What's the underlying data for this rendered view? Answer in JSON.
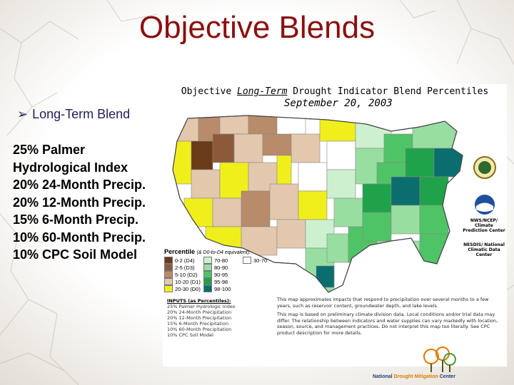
{
  "slide": {
    "title": "Objective Blends",
    "bullet": "Long-Term Blend",
    "weights": [
      "25% Palmer",
      "Hydrological Index",
      "20% 24-Month Precip.",
      "20% 12-Month Precip.",
      "15% 6-Month Precip.",
      "10% 60-Month Precip.",
      "10% CPC Soil Model"
    ]
  },
  "figure": {
    "title_prefix": "Objective ",
    "title_longterm": "Long-Term",
    "title_suffix": " Drought Indicator Blend Percentiles",
    "date": "September 20, 2003",
    "legend": {
      "title": "Percentile",
      "equiv": "(& D0-to-D4 equivalent):",
      "items": [
        {
          "label": "0-2 (D4)",
          "color": "#6b3a18"
        },
        {
          "label": "2-5 (D3)",
          "color": "#8c5a3a"
        },
        {
          "label": "5-10 (D2)",
          "color": "#b88b6a"
        },
        {
          "label": "10-20 (D1)",
          "color": "#e3c8ae"
        },
        {
          "label": "20-30 (D0)",
          "color": "#f0ef1c"
        },
        {
          "label": "30-70",
          "color": "#ffffff"
        },
        {
          "label": "70-80",
          "color": "#cdf1cf"
        },
        {
          "label": "80-90",
          "color": "#99dea1"
        },
        {
          "label": "90-95",
          "color": "#4fc466"
        },
        {
          "label": "95-98",
          "color": "#1ea34a"
        },
        {
          "label": "98-100",
          "color": "#0a6e6e"
        }
      ]
    },
    "inputs": {
      "heading": "INPUTS (as Percentiles):",
      "lines": [
        "25%  Palmer Hydrologic Index",
        "20%  24-Month Precipitation",
        "20%  12-Month Precipitation",
        "15%  6-Month Precipitation",
        "10%  60-Month Precipitation",
        "10%  CPC Soil Model"
      ]
    },
    "notes": [
      "This map approximates impacts that respond to precipitation over several months to a few years, such as reservoir content, groundwater depth, and lake levels.",
      "This map is based on preliminary climate division data. Local conditions and/or trial data may differ. The relationship between indicators and water supplies can vary markedly with location, season, source, and management practices. Do not interpret this map too literally. See CPC product description for more details."
    ],
    "side_labels": {
      "nws": "NWS/NCEP/ Climate Prediction Center",
      "ncdc": "NESDIS/ National Climatic Data Center"
    }
  },
  "ndmc": {
    "national": "National",
    "drought": "Drought Mitigation",
    "center": "Center"
  },
  "colors": {
    "title": "#8b0f0f",
    "bullet": "#1f1f5a"
  }
}
